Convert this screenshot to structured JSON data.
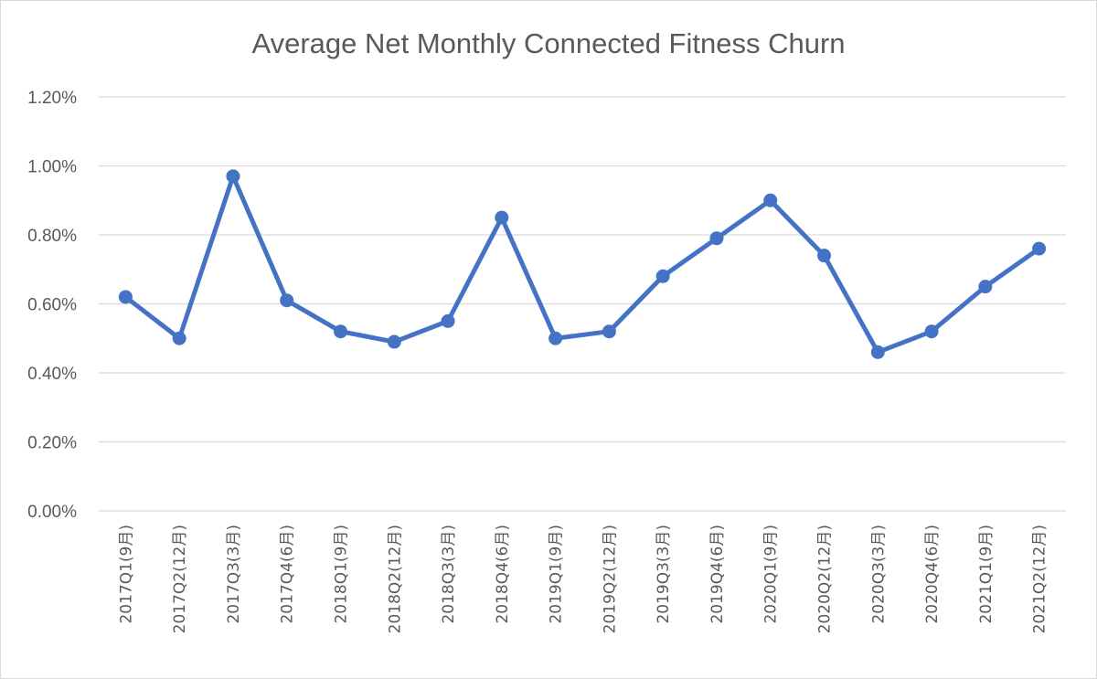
{
  "chart_data": {
    "type": "line",
    "title": "Average Net Monthly Connected Fitness Churn",
    "xlabel": "",
    "ylabel": "",
    "ylim": [
      0,
      0.012
    ],
    "yticks": [
      "0.00%",
      "0.20%",
      "0.40%",
      "0.60%",
      "0.80%",
      "1.00%",
      "1.20%"
    ],
    "grid": true,
    "legend": "none",
    "color": "#4472c4",
    "categories": [
      "2017Q1(9月)",
      "2017Q2(12月)",
      "2017Q3(3月)",
      "2017Q4(6月)",
      "2018Q1(9月)",
      "2018Q2(12月)",
      "2018Q3(3月)",
      "2018Q4(6月)",
      "2019Q1(9月)",
      "2019Q2(12月)",
      "2019Q3(3月)",
      "2019Q4(6月)",
      "2020Q1(9月)",
      "2020Q2(12月)",
      "2020Q3(3月)",
      "2020Q4(6月)",
      "2021Q1(9月)",
      "2021Q2(12月)"
    ],
    "values": [
      0.0062,
      0.005,
      0.0097,
      0.0061,
      0.0052,
      0.0049,
      0.0055,
      0.0085,
      0.005,
      0.0052,
      0.0068,
      0.0079,
      0.009,
      0.0074,
      0.0046,
      0.0052,
      0.0065,
      0.0076
    ]
  }
}
